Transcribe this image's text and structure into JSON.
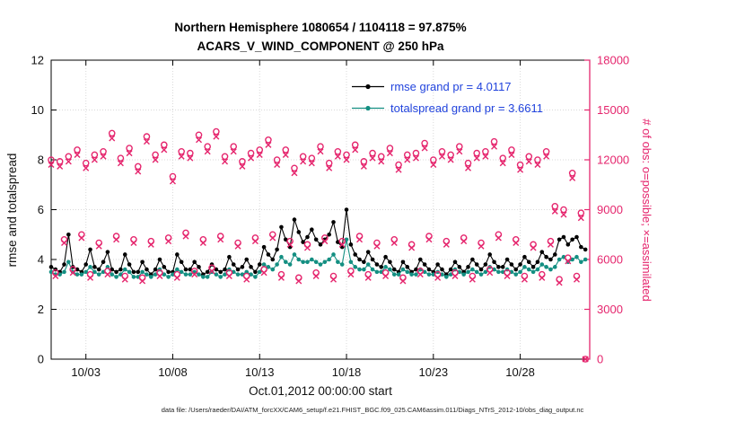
{
  "chart_data": {
    "type": "line",
    "title_line1": "Northern Hemisphere 1080654 / 1104118 = 97.875%",
    "title_line2": "ACARS_V_WIND_COMPONENT @ 250 hPa",
    "xlabel": "Oct.01,2012 00:00:00 start",
    "grid": true,
    "x_axis": {
      "tick_labels": [
        "10/03",
        "10/08",
        "10/13",
        "10/18",
        "10/23",
        "10/28"
      ],
      "tick_days": [
        2,
        7,
        12,
        17,
        22,
        27
      ],
      "range_days": [
        0,
        31
      ]
    },
    "left_axis": {
      "label": "rmse and totalspread",
      "ticks": [
        0,
        2,
        4,
        6,
        8,
        10,
        12
      ],
      "range": [
        0,
        12
      ],
      "color": "#000000"
    },
    "right_axis": {
      "label": "# of obs: o=possible; ×=assimilated",
      "ticks": [
        0,
        3000,
        6000,
        9000,
        12000,
        15000,
        18000
      ],
      "range": [
        0,
        18000
      ],
      "color": "#e5256d"
    },
    "x_start_day": 0,
    "x_step_days": 0.25,
    "n_points": 124,
    "series": [
      {
        "name": "rmse",
        "axis": "left",
        "color": "#000000",
        "marker": "dot",
        "line": true,
        "values": [
          3.7,
          3.6,
          3.5,
          3.8,
          5.0,
          3.7,
          3.6,
          3.5,
          3.8,
          4.4,
          3.7,
          3.6,
          3.9,
          4.3,
          3.6,
          3.5,
          3.6,
          4.2,
          3.8,
          3.5,
          3.5,
          3.9,
          3.6,
          3.4,
          3.6,
          4.0,
          3.7,
          3.5,
          3.5,
          4.2,
          3.9,
          3.6,
          3.6,
          3.9,
          3.7,
          3.4,
          3.5,
          3.8,
          3.6,
          3.5,
          3.6,
          4.1,
          3.8,
          3.6,
          3.7,
          4.0,
          3.7,
          3.5,
          3.8,
          4.5,
          4.2,
          4.0,
          4.4,
          5.3,
          4.8,
          4.5,
          5.6,
          5.1,
          4.7,
          4.9,
          5.2,
          4.8,
          4.6,
          4.8,
          5.0,
          5.5,
          4.7,
          4.5,
          6.0,
          4.6,
          4.2,
          4.0,
          3.9,
          4.3,
          4.0,
          3.8,
          3.7,
          4.1,
          3.9,
          3.6,
          3.5,
          3.9,
          3.7,
          3.5,
          3.6,
          4.0,
          3.8,
          3.6,
          3.5,
          3.8,
          3.6,
          3.4,
          3.6,
          3.9,
          3.7,
          3.5,
          3.7,
          4.0,
          3.8,
          3.6,
          3.8,
          4.2,
          3.9,
          3.7,
          3.7,
          4.0,
          3.8,
          3.6,
          3.8,
          4.1,
          3.9,
          3.7,
          3.9,
          4.3,
          4.1,
          4.0,
          4.2,
          4.8,
          4.9,
          4.6,
          4.8,
          4.9,
          4.5,
          4.4
        ]
      },
      {
        "name": "totalspread",
        "axis": "left",
        "color": "#148f82",
        "marker": "dot",
        "line": true,
        "values": [
          3.5,
          3.4,
          3.4,
          3.5,
          3.9,
          3.5,
          3.4,
          3.4,
          3.5,
          3.7,
          3.5,
          3.4,
          3.5,
          3.7,
          3.4,
          3.3,
          3.4,
          3.6,
          3.5,
          3.3,
          3.3,
          3.5,
          3.4,
          3.3,
          3.4,
          3.6,
          3.4,
          3.3,
          3.4,
          3.6,
          3.5,
          3.4,
          3.4,
          3.5,
          3.4,
          3.3,
          3.3,
          3.5,
          3.4,
          3.3,
          3.4,
          3.6,
          3.5,
          3.4,
          3.4,
          3.5,
          3.4,
          3.3,
          3.5,
          3.8,
          3.7,
          3.6,
          3.8,
          4.1,
          3.9,
          3.8,
          4.2,
          4.0,
          3.9,
          3.9,
          4.0,
          3.9,
          3.8,
          3.9,
          4.0,
          4.2,
          3.9,
          3.8,
          4.8,
          3.9,
          3.7,
          3.6,
          3.6,
          3.8,
          3.6,
          3.5,
          3.5,
          3.7,
          3.6,
          3.4,
          3.4,
          3.6,
          3.5,
          3.4,
          3.4,
          3.6,
          3.5,
          3.4,
          3.4,
          3.5,
          3.4,
          3.3,
          3.4,
          3.6,
          3.5,
          3.4,
          3.5,
          3.6,
          3.5,
          3.4,
          3.5,
          3.7,
          3.6,
          3.5,
          3.5,
          3.6,
          3.5,
          3.4,
          3.5,
          3.7,
          3.6,
          3.5,
          3.6,
          3.8,
          3.7,
          3.6,
          3.7,
          4.0,
          4.1,
          3.9,
          4.0,
          4.1,
          3.9,
          4.0
        ]
      },
      {
        "name": "possible",
        "axis": "right",
        "color": "#e5256d",
        "marker": "circle",
        "line": false,
        "values": [
          12000,
          5200,
          11900,
          7200,
          12200,
          5400,
          12600,
          7500,
          11800,
          5100,
          12300,
          7000,
          12500,
          5300,
          13600,
          7400,
          12100,
          5000,
          12700,
          7200,
          11600,
          4900,
          13400,
          7100,
          12300,
          5200,
          12900,
          7300,
          11000,
          5100,
          12500,
          7600,
          12400,
          5300,
          13500,
          7200,
          12800,
          5500,
          13700,
          7400,
          12200,
          5200,
          12800,
          7000,
          11900,
          5000,
          12400,
          7300,
          12600,
          5400,
          13200,
          7500,
          12000,
          5100,
          12600,
          7100,
          11500,
          4900,
          12200,
          6900,
          12100,
          5200,
          12800,
          7300,
          11800,
          5000,
          12500,
          7100,
          12300,
          5300,
          12900,
          7400,
          11900,
          5100,
          12400,
          7000,
          12200,
          5200,
          12700,
          7200,
          11700,
          4900,
          12300,
          6900,
          12400,
          5300,
          13000,
          7400,
          12000,
          5100,
          12500,
          7100,
          12300,
          5200,
          12800,
          7300,
          11800,
          5000,
          12400,
          7000,
          12500,
          5400,
          13100,
          7500,
          12100,
          5200,
          12600,
          7200,
          11700,
          5000,
          12200,
          6900,
          12000,
          5100,
          12500,
          7100,
          9200,
          4800,
          9000,
          6100,
          11200,
          5000,
          8800,
          0
        ]
      },
      {
        "name": "assimilated",
        "axis": "right",
        "color": "#e5256d",
        "marker": "x",
        "line": false,
        "values": [
          11700,
          5000,
          11600,
          7000,
          11900,
          5200,
          12300,
          7300,
          11500,
          4900,
          12000,
          6800,
          12200,
          5100,
          13300,
          7200,
          11800,
          4800,
          12400,
          7000,
          11300,
          4700,
          13100,
          6900,
          12000,
          5000,
          12600,
          7100,
          10700,
          4900,
          12200,
          7400,
          12100,
          5100,
          13200,
          7000,
          12500,
          5300,
          13400,
          7200,
          11900,
          5000,
          12500,
          6800,
          11600,
          4800,
          12100,
          7100,
          12300,
          5200,
          12900,
          7300,
          11700,
          4900,
          12300,
          6900,
          11200,
          4700,
          11900,
          6700,
          11800,
          5000,
          12500,
          7100,
          11500,
          4800,
          12200,
          6900,
          12000,
          5100,
          12600,
          7200,
          11600,
          4900,
          12100,
          6800,
          11900,
          5000,
          12400,
          7000,
          11400,
          4700,
          12000,
          6700,
          12100,
          5100,
          12700,
          7200,
          11700,
          4900,
          12200,
          6900,
          12000,
          5000,
          12500,
          7100,
          11500,
          4800,
          12100,
          6800,
          12200,
          5200,
          12800,
          7300,
          11800,
          5000,
          12300,
          7000,
          11400,
          4800,
          11900,
          6700,
          11700,
          4900,
          12200,
          6900,
          8900,
          4600,
          8700,
          5900,
          10900,
          4800,
          8500,
          0
        ]
      }
    ]
  },
  "legend": {
    "text_color": "#2244dd",
    "entries": [
      {
        "label": "rmse grand pr = 4.0117",
        "color": "#000000",
        "marker": "dot"
      },
      {
        "label": "totalspread grand pr = 3.6611",
        "color": "#148f82",
        "marker": "dot"
      }
    ]
  },
  "footer": "data file: /Users/raeder/DAI/ATM_forcXX/CAM6_setup/f.e21.FHIST_BGC.f09_025.CAM6assim.011/Diags_NTrS_2012-10/obs_diag_output.nc"
}
